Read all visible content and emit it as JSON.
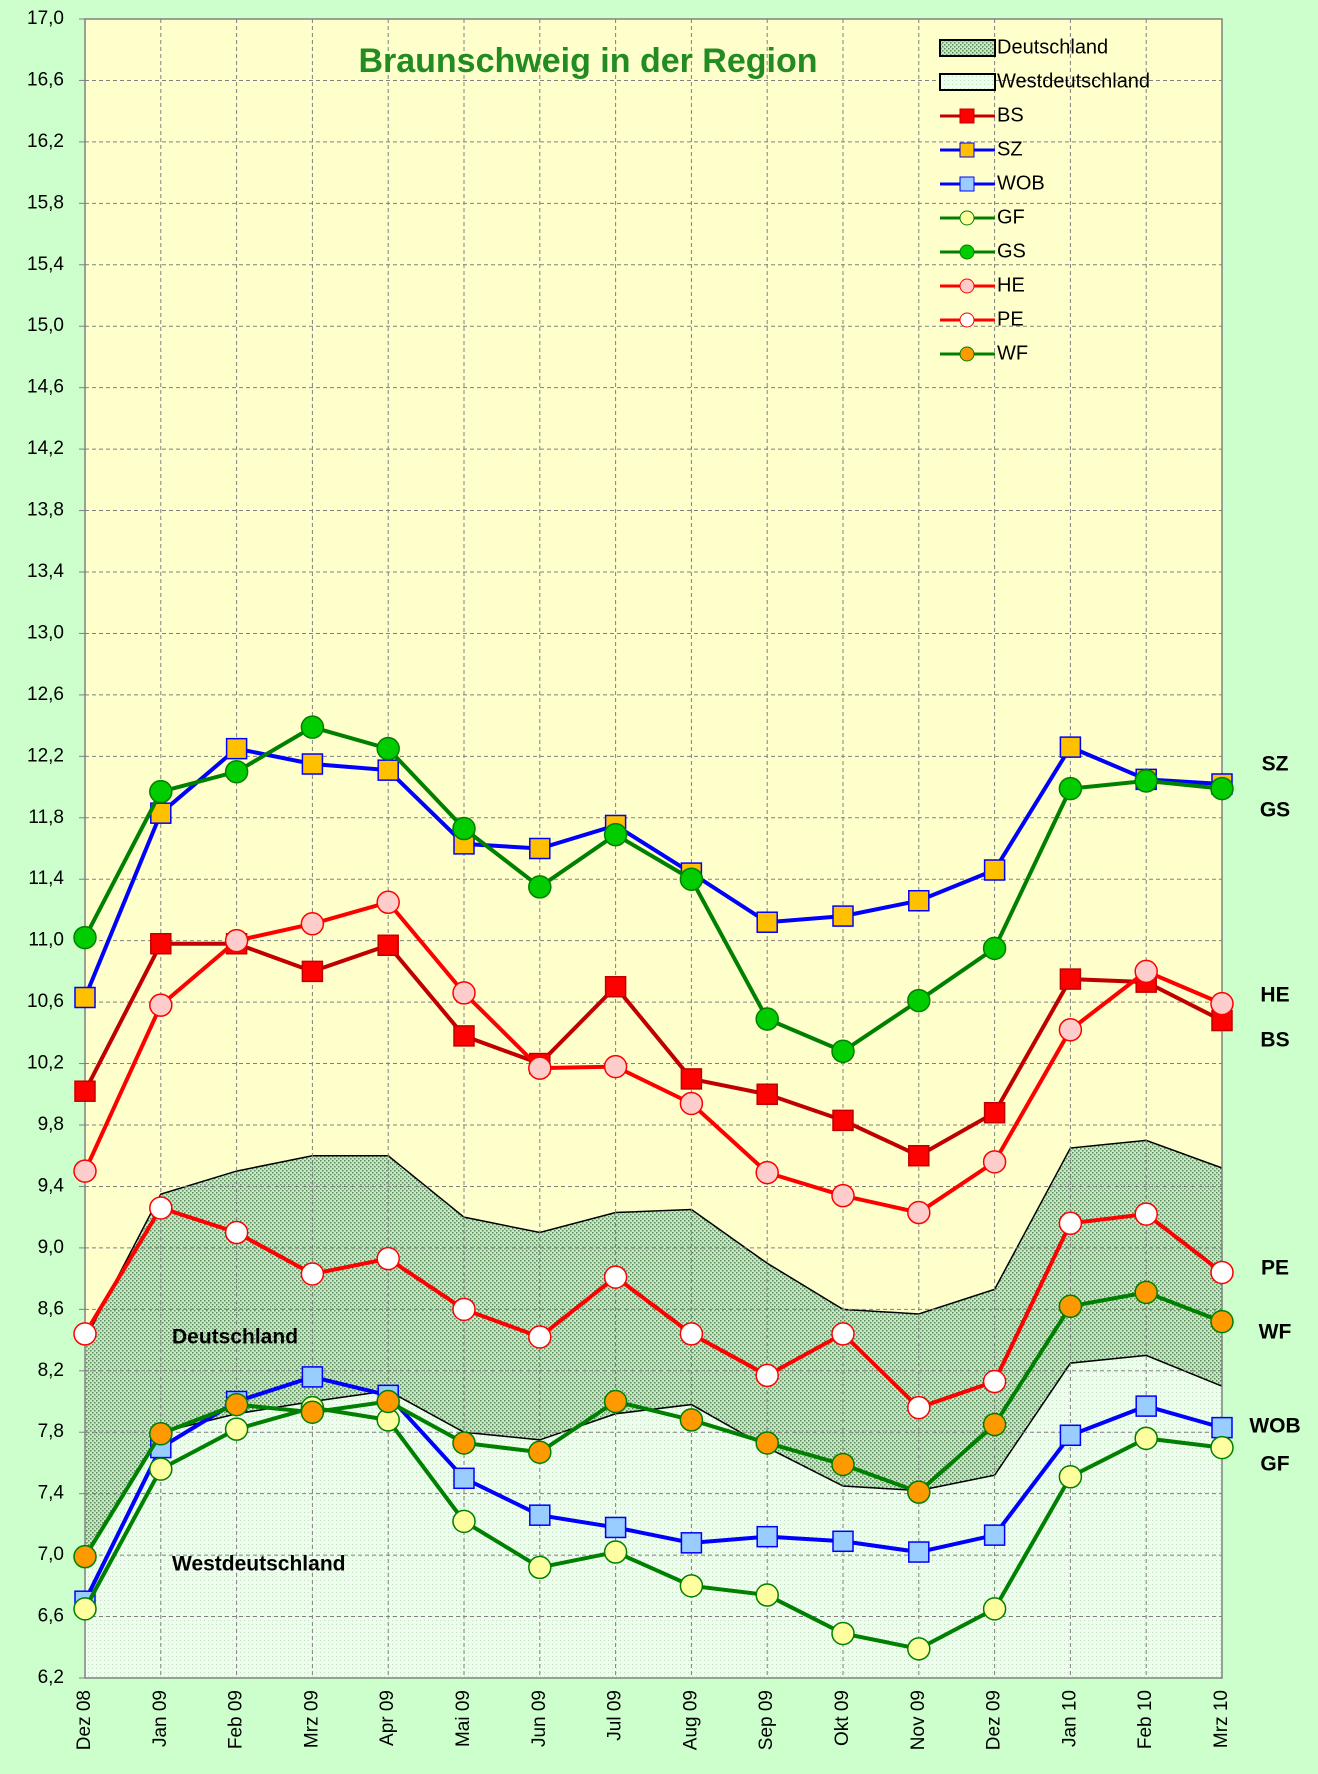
{
  "chart_data": {
    "type": "line",
    "title": "Braunschweig in der Region",
    "categories": [
      "Dez 08",
      "Jan 09",
      "Feb 09",
      "Mrz 09",
      "Apr 09",
      "Mai 09",
      "Jun 09",
      "Jul 09",
      "Aug 09",
      "Sep 09",
      "Okt 09",
      "Nov 09",
      "Dez 09",
      "Jan 10",
      "Feb 10",
      "Mrz 10"
    ],
    "ylim": [
      6.2,
      17.0
    ],
    "yticks": [
      {
        "value": 6.2,
        "label": "6,2"
      },
      {
        "value": 6.6,
        "label": "6,6"
      },
      {
        "value": 7.0,
        "label": "7,0"
      },
      {
        "value": 7.4,
        "label": "7,4"
      },
      {
        "value": 7.8,
        "label": "7,8"
      },
      {
        "value": 8.2,
        "label": "8,2"
      },
      {
        "value": 8.6,
        "label": "8,6"
      },
      {
        "value": 9.0,
        "label": "9,0"
      },
      {
        "value": 9.4,
        "label": "9,4"
      },
      {
        "value": 9.8,
        "label": "9,8"
      },
      {
        "value": 10.2,
        "label": "10,2"
      },
      {
        "value": 10.6,
        "label": "10,6"
      },
      {
        "value": 11.0,
        "label": "11,0"
      },
      {
        "value": 11.4,
        "label": "11,4"
      },
      {
        "value": 11.8,
        "label": "11,8"
      },
      {
        "value": 12.2,
        "label": "12,2"
      },
      {
        "value": 12.6,
        "label": "12,6"
      },
      {
        "value": 13.0,
        "label": "13,0"
      },
      {
        "value": 13.4,
        "label": "13,4"
      },
      {
        "value": 13.8,
        "label": "13,8"
      },
      {
        "value": 14.2,
        "label": "14,2"
      },
      {
        "value": 14.6,
        "label": "14,6"
      },
      {
        "value": 15.0,
        "label": "15,0"
      },
      {
        "value": 15.4,
        "label": "15,4"
      },
      {
        "value": 15.8,
        "label": "15,8"
      },
      {
        "value": 16.2,
        "label": "16,2"
      },
      {
        "value": 16.6,
        "label": "16,6"
      },
      {
        "value": 17.0,
        "label": "17,0"
      }
    ],
    "grid": true,
    "legend": "top-right",
    "areas": [
      {
        "name": "Deutschland",
        "color": "#a8d8a8",
        "values": [
          8.4,
          9.35,
          9.5,
          9.6,
          9.6,
          9.2,
          9.1,
          9.23,
          9.25,
          8.9,
          8.6,
          8.57,
          8.73,
          9.65,
          9.7,
          9.52
        ]
      },
      {
        "name": "Westdeutschland",
        "color": "#e6fae6",
        "values": [
          7.0,
          7.8,
          7.92,
          8.0,
          8.07,
          7.8,
          7.75,
          7.92,
          7.98,
          7.7,
          7.45,
          7.42,
          7.52,
          8.25,
          8.3,
          8.1
        ]
      }
    ],
    "series": [
      {
        "name": "BS",
        "color": "#c00000",
        "marker": "square",
        "marker_color": "#ff0000",
        "values": [
          10.02,
          10.98,
          10.98,
          10.8,
          10.97,
          10.38,
          10.2,
          10.7,
          10.1,
          10.0,
          9.83,
          9.6,
          9.88,
          10.75,
          10.73,
          10.48
        ]
      },
      {
        "name": "SZ",
        "color": "#0000ff",
        "marker": "square",
        "marker_color": "#ffc000",
        "values": [
          10.63,
          11.83,
          12.25,
          12.15,
          12.11,
          11.63,
          11.6,
          11.75,
          11.44,
          11.12,
          11.16,
          11.26,
          11.46,
          12.26,
          12.05,
          12.02
        ]
      },
      {
        "name": "WOB",
        "color": "#0000ff",
        "marker": "square",
        "marker_color": "#99ccff",
        "values": [
          6.7,
          7.7,
          8.0,
          8.16,
          8.04,
          7.5,
          7.26,
          7.18,
          7.08,
          7.12,
          7.09,
          7.02,
          7.13,
          7.78,
          7.97,
          7.83
        ]
      },
      {
        "name": "GF",
        "color": "#008000",
        "marker": "circle",
        "marker_color": "#ffffa0",
        "values": [
          6.65,
          7.56,
          7.82,
          7.96,
          7.88,
          7.22,
          6.92,
          7.02,
          6.8,
          6.74,
          6.49,
          6.39,
          6.65,
          7.51,
          7.76,
          7.7
        ]
      },
      {
        "name": "GS",
        "color": "#008000",
        "marker": "circle",
        "marker_color": "#00cc00",
        "values": [
          11.02,
          11.97,
          12.1,
          12.39,
          12.25,
          11.73,
          11.35,
          11.69,
          11.4,
          10.49,
          10.28,
          10.61,
          10.95,
          11.99,
          12.04,
          11.99
        ]
      },
      {
        "name": "HE",
        "color": "#ff0000",
        "marker": "circle",
        "marker_color": "#ffcccc",
        "values": [
          9.5,
          10.58,
          11.0,
          11.11,
          11.25,
          10.66,
          10.17,
          10.18,
          9.94,
          9.49,
          9.34,
          9.23,
          9.56,
          10.42,
          10.8,
          10.59
        ]
      },
      {
        "name": "PE",
        "color": "#ff0000",
        "marker": "circle",
        "marker_color": "#ffffff",
        "values": [
          8.44,
          9.26,
          9.1,
          8.83,
          8.93,
          8.6,
          8.42,
          8.81,
          8.44,
          8.17,
          8.44,
          7.96,
          8.13,
          9.16,
          9.22,
          8.84
        ]
      },
      {
        "name": "WF",
        "color": "#008000",
        "marker": "circle",
        "marker_color": "#ff9900",
        "values": [
          6.99,
          7.79,
          7.98,
          7.93,
          8.0,
          7.73,
          7.67,
          8.0,
          7.88,
          7.73,
          7.59,
          7.41,
          7.85,
          8.62,
          8.71,
          8.52
        ]
      }
    ],
    "annotations": [
      "SZ",
      "GS",
      "HE",
      "BS",
      "PE",
      "WF",
      "WOB",
      "GF",
      "Deutschland",
      "Westdeutschland"
    ]
  }
}
